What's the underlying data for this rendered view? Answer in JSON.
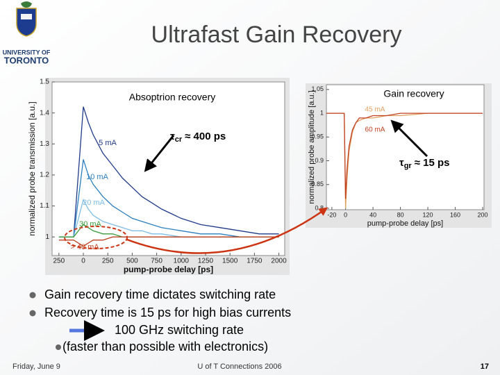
{
  "title": "Ultrafast Gain Recovery",
  "logo": {
    "line1": "UNIVERSITY OF",
    "line2": "TORONTO"
  },
  "bullets": [
    "Gain recovery time dictates switching rate",
    "Recovery time is 15 ps for high bias currents",
    "100 GHz switching rate",
    "(faster than possible with electronics)"
  ],
  "footer": {
    "date": "Friday, June 9",
    "center": "U of T Connections 2006",
    "page": "17"
  },
  "chart_data": [
    {
      "type": "line",
      "title": "Absoptrion recovery",
      "x_label": "pump-probe delay [ps]",
      "y_label": "normalized probe transmission [a.u.]",
      "annotation": {
        "symbol": "τ",
        "sub": "cr",
        "text": "≈ 400 ps"
      },
      "x": [
        -250,
        -100,
        0,
        50,
        100,
        200,
        300,
        400,
        500,
        600,
        700,
        800,
        1000,
        1200,
        1400,
        1600,
        1800,
        2000
      ],
      "series": [
        {
          "name": "5 mA",
          "color": "#1f3a8a",
          "values": [
            1.0,
            1.0,
            1.42,
            1.37,
            1.33,
            1.27,
            1.23,
            1.19,
            1.16,
            1.13,
            1.11,
            1.09,
            1.06,
            1.04,
            1.03,
            1.02,
            1.01,
            1.01
          ]
        },
        {
          "name": "10 mA",
          "color": "#2a7fbf",
          "values": [
            1.0,
            1.0,
            1.25,
            1.2,
            1.17,
            1.13,
            1.1,
            1.08,
            1.06,
            1.05,
            1.04,
            1.03,
            1.02,
            1.01,
            1.01,
            1.0,
            1.0,
            1.0
          ]
        },
        {
          "name": "20 mA",
          "color": "#7dbde6",
          "values": [
            1.0,
            1.0,
            1.12,
            1.09,
            1.07,
            1.05,
            1.04,
            1.03,
            1.02,
            1.02,
            1.01,
            1.01,
            1.0,
            1.0,
            1.0,
            1.0,
            1.0,
            1.0
          ]
        },
        {
          "name": "30 mA",
          "color": "#3a9a3a",
          "values": [
            1.0,
            1.0,
            1.04,
            1.03,
            1.02,
            1.01,
            1.01,
            1.0,
            1.0,
            1.0,
            1.0,
            1.0,
            1.0,
            1.0,
            1.0,
            1.0,
            1.0,
            1.0
          ]
        },
        {
          "name": "> 40 mA",
          "color": "#c04020",
          "values": [
            0.99,
            0.99,
            0.97,
            0.98,
            0.99,
            0.99,
            1.0,
            1.0,
            1.0,
            1.0,
            1.0,
            1.0,
            1.0,
            1.0,
            1.0,
            1.0,
            1.0,
            1.0
          ]
        }
      ],
      "xlim": [
        -320,
        2060
      ],
      "ylim": [
        0.94,
        1.5
      ],
      "xticks": [
        {
          "value": -250,
          "label": "250"
        },
        0,
        250,
        500,
        750,
        1000,
        1250,
        1500,
        1750,
        2000
      ],
      "yticks": [
        1,
        1.1,
        1.2,
        1.3,
        1.4,
        1.5
      ]
    },
    {
      "type": "line",
      "title": "Gain recovery",
      "x_label": "pump-probe delay [ps]",
      "y_label": "normalized probe amplitude [a.u.]",
      "annotation": {
        "symbol": "τ",
        "sub": "gr",
        "text": "≈ 15 ps"
      },
      "x": [
        -28,
        -10,
        -2,
        0,
        2,
        5,
        10,
        15,
        20,
        30,
        40,
        60,
        80,
        120,
        160,
        200
      ],
      "series": [
        {
          "name": "45 mA",
          "color": "#e0a060",
          "values": [
            1.0,
            1.0,
            1.0,
            0.8,
            0.86,
            0.92,
            0.96,
            0.98,
            0.985,
            0.99,
            0.99,
            0.995,
            0.995,
            1.0,
            1.0,
            1.0
          ]
        },
        {
          "name": "60 mA",
          "color": "#c04020",
          "values": [
            1.0,
            1.0,
            1.0,
            0.82,
            0.88,
            0.93,
            0.965,
            0.98,
            0.99,
            0.99,
            0.995,
            0.995,
            1.0,
            1.0,
            1.0,
            1.0
          ]
        }
      ],
      "xlim": [
        -28,
        202
      ],
      "ylim": [
        0.797,
        1.06
      ],
      "xticks": [
        -20,
        0,
        40,
        80,
        120,
        160,
        200
      ],
      "yticks": [
        0.8,
        0.85,
        0.9,
        0.95,
        1,
        1.05
      ]
    }
  ]
}
